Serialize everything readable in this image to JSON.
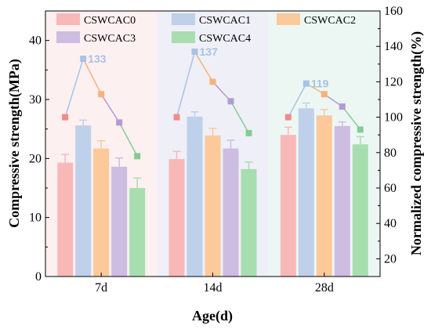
{
  "chart_data": {
    "type": "bar",
    "xlabel": "Age(d)",
    "ylabel": "Compressive strength(MPa)",
    "y2label": "Normalized compressive strength(%)",
    "ylim": [
      0,
      45
    ],
    "y2lim": [
      10,
      160
    ],
    "yticks": [
      "0",
      "10",
      "20",
      "30",
      "40"
    ],
    "y2ticks": [
      "20",
      "40",
      "60",
      "80",
      "100",
      "120",
      "140",
      "160"
    ],
    "categories": [
      "7d",
      "14d",
      "28d"
    ],
    "group_backgrounds": [
      "#fdf0f0",
      "#efeff7",
      "#ecf7f4"
    ],
    "series": [
      {
        "name": "CSWCAC0",
        "color": "#f9b8b8",
        "line_color": "#f28a8a",
        "values": [
          19.3,
          19.9,
          24.0
        ],
        "errors": [
          1.4,
          1.3,
          1.3
        ],
        "normalized": [
          100,
          100,
          100
        ]
      },
      {
        "name": "CSWCAC1",
        "color": "#bfd0ea",
        "line_color": "#a9c2e6",
        "values": [
          25.6,
          27.1,
          28.5
        ],
        "errors": [
          0.9,
          0.8,
          0.9
        ],
        "normalized": [
          133,
          137,
          119
        ]
      },
      {
        "name": "CSWCAC2",
        "color": "#fcc99a",
        "line_color": "#f9b27a",
        "values": [
          21.7,
          23.9,
          27.3
        ],
        "errors": [
          1.3,
          1.2,
          1.0
        ],
        "normalized": [
          113,
          120,
          113
        ]
      },
      {
        "name": "CSWCAC3",
        "color": "#cdbde0",
        "line_color": "#b49ad6",
        "values": [
          18.6,
          21.7,
          25.5
        ],
        "errors": [
          1.5,
          1.4,
          0.7
        ],
        "normalized": [
          97,
          109,
          106
        ]
      },
      {
        "name": "CSWCAC4",
        "color": "#a8ddb0",
        "line_color": "#85cc94",
        "values": [
          15.0,
          18.2,
          22.4
        ],
        "errors": [
          1.7,
          1.2,
          1.3
        ],
        "normalized": [
          78,
          91,
          93
        ]
      }
    ],
    "annotations": [
      {
        "text": "133",
        "category": 0,
        "series": 1
      },
      {
        "text": "137",
        "category": 1,
        "series": 1
      },
      {
        "text": "119",
        "category": 2,
        "series": 1
      }
    ],
    "grid": false,
    "legend_position": "top"
  }
}
